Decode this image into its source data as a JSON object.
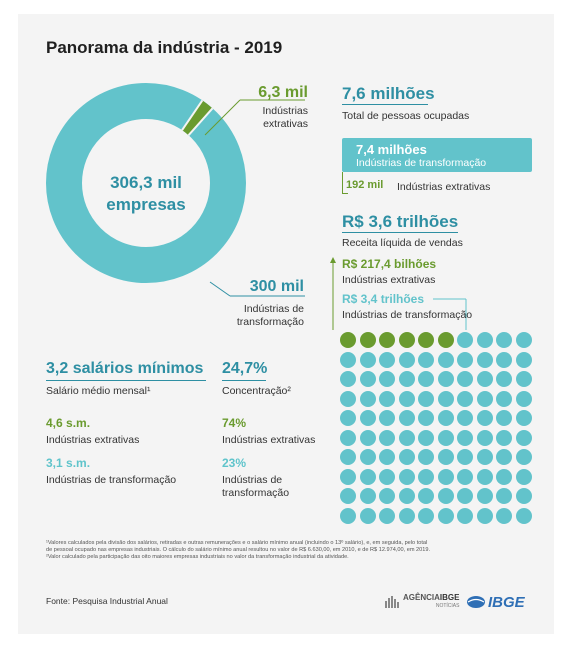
{
  "title": "Panorama da indústria - 2019",
  "donut": {
    "center_value": "306,3 mil",
    "center_label": "empresas",
    "extractive_value": "6,3 mil",
    "extractive_label_1": "Indústrias",
    "extractive_label_2": "extrativas",
    "transformation_value": "300 mil",
    "transformation_label_1": "Indústrias de",
    "transformation_label_2": "transformação",
    "extractive_share": 0.0206
  },
  "employees": {
    "value": "7,6 milhões",
    "label": "Total de pessoas ocupadas",
    "transformation_value": "7,4 milhões",
    "transformation_label": "Indústrias de transformação",
    "extractive_value": "192 mil",
    "extractive_label": "Indústrias extrativas"
  },
  "revenue": {
    "value": "R$ 3,6 trilhões",
    "label": "Receita líquida de vendas",
    "extractive_value": "R$ 217,4 bilhões",
    "extractive_label": "Indústrias extrativas",
    "transformation_value": "R$ 3,4 trilhões",
    "transformation_label": "Indústrias de transformação",
    "dot_rows": 10,
    "dot_cols": 10,
    "green_dots": 6
  },
  "salary": {
    "value": "3,2 salários mínimos",
    "label": "Salário médio mensal¹",
    "extractive_value": "4,6 s.m.",
    "extractive_label": "Indústrias extrativas",
    "transformation_value": "3,1 s.m.",
    "transformation_label": "Indústrias de transformação"
  },
  "concentration": {
    "value": "24,7%",
    "label": "Concentração²",
    "extractive_value": "74%",
    "extractive_label": "Indústrias extrativas",
    "transformation_value": "23%",
    "transformation_label_1": "Indústrias de",
    "transformation_label_2": "transformação"
  },
  "footnotes": {
    "line1": "¹Valores calculados pela divisão dos salários, retiradas e outras remunerações e o salário mínimo anual (incluindo o 13º salário), e, em seguida, pelo total",
    "line2": "de pessoal ocupado nas empresas industriais. O cálculo do salário mínimo anual resultou no valor de R$ 6.630,00, em 2010, e de R$ 12.974,00, em 2019.",
    "line3": "²Valor calculado pela participação das oito maiores empresas industriais no valor da transformação industrial da atividade."
  },
  "source": "Fonte: Pesquisa Industrial Anual",
  "logos": {
    "agencia_1": "AGÊNCIA",
    "agencia_2": "IBGE",
    "agencia_sub": "NOTÍCIAS",
    "ibge": "IBGE"
  },
  "colors": {
    "green": "#6a9b2f",
    "teal": "#62c3cb",
    "dark_teal": "#2e8fa3"
  }
}
